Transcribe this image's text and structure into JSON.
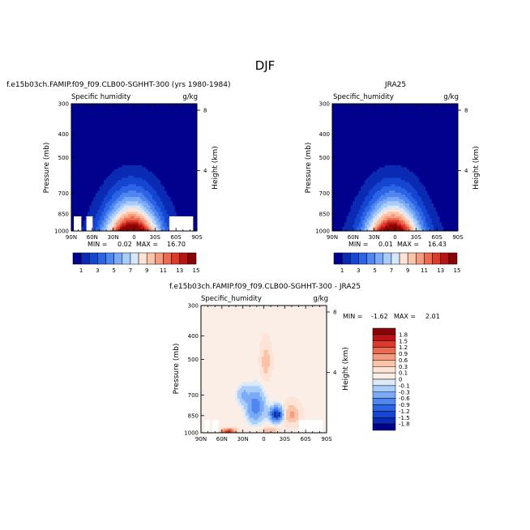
{
  "figure": {
    "title": "DJF"
  },
  "chart_data": [
    {
      "type": "heatmap",
      "title": "f.e15b03ch.FAMIP.f09_f09.CLB00-SGHHT-300 (yrs 1980-1984)",
      "subtitle_left": "Specific humidity",
      "subtitle_right": "g/kg",
      "ylabel": "Pressure (mb)",
      "ylabel_right": "Height (km)",
      "x_ticks": [
        "90N",
        "60N",
        "30N",
        "0",
        "30S",
        "60S",
        "90S"
      ],
      "y_ticks": [
        "300",
        "400",
        "500",
        "700",
        "850",
        "1000"
      ],
      "height_ticks": [
        "8",
        "4"
      ],
      "ylim": [
        1000,
        300
      ],
      "stats": {
        "min_label": "MIN =",
        "min": "0.02",
        "max_label": "MAX =",
        "max": "16.70"
      },
      "levels": [
        "1",
        "3",
        "5",
        "7",
        "9",
        "11",
        "13",
        "15"
      ],
      "peak_lat": 3,
      "peak_value": 16.7
    },
    {
      "type": "heatmap",
      "title": "JRA25",
      "subtitle_left": "Specific_humidity",
      "subtitle_right": "g/kg",
      "ylabel": "Pressure (mb)",
      "ylabel_right": "Height (km)",
      "x_ticks": [
        "90N",
        "60N",
        "30N",
        "0",
        "30S",
        "60S",
        "90S"
      ],
      "y_ticks": [
        "300",
        "400",
        "500",
        "700",
        "850",
        "1000"
      ],
      "height_ticks": [
        "8",
        "4"
      ],
      "ylim": [
        1000,
        300
      ],
      "stats": {
        "min_label": "MIN =",
        "min": "0.01",
        "max_label": "MAX =",
        "max": "16.43"
      },
      "levels": [
        "1",
        "3",
        "5",
        "7",
        "9",
        "11",
        "13",
        "15"
      ],
      "peak_lat": 3,
      "peak_value": 16.43
    },
    {
      "type": "heatmap",
      "title": "f.e15b03ch.FAMIP.f09_f09.CLB00-SGHHT-300 - JRA25",
      "subtitle_left": "Specific_humidity",
      "subtitle_right": "g/kg",
      "ylabel": "Pressure (mb)",
      "ylabel_right": "Height (km)",
      "x_ticks": [
        "90N",
        "60N",
        "30N",
        "0",
        "30S",
        "60S",
        "90S"
      ],
      "y_ticks": [
        "300",
        "400",
        "500",
        "700",
        "850",
        "1000"
      ],
      "height_ticks": [
        "8",
        "4"
      ],
      "ylim": [
        1000,
        300
      ],
      "stats": {
        "min_label": "MIN =",
        "min": "-1.62",
        "max_label": "MAX =",
        "max": "2.01"
      },
      "levels": [
        "1.8",
        "1.5",
        "1.2",
        "0.9",
        "0.6",
        "0.3",
        "0.1",
        "0",
        "-0.1",
        "-0.3",
        "-0.6",
        "-0.9",
        "-1.2",
        "-1.5",
        "-1.8"
      ],
      "contour_label": "-1.2"
    }
  ],
  "colors": {
    "seq_colorbar": [
      "#00018c",
      "#0a2ab4",
      "#1446d2",
      "#2c64e6",
      "#4f86f2",
      "#7aaaf8",
      "#a9cdfb",
      "#d6e7fc",
      "#fde4d6",
      "#fbc4a8",
      "#f59c7e",
      "#ec6a50",
      "#dc3a2a",
      "#b81414",
      "#880505"
    ],
    "div_colorbar": [
      "#880505",
      "#b81414",
      "#dc3a2a",
      "#ec6a50",
      "#f59c7e",
      "#fbc4a8",
      "#fde4d6",
      "#fbeee6",
      "#dbeaf8",
      "#a9cdfb",
      "#7aaaf8",
      "#4f86f2",
      "#2c64e6",
      "#1446d2",
      "#0a2ab4",
      "#00018c"
    ]
  }
}
